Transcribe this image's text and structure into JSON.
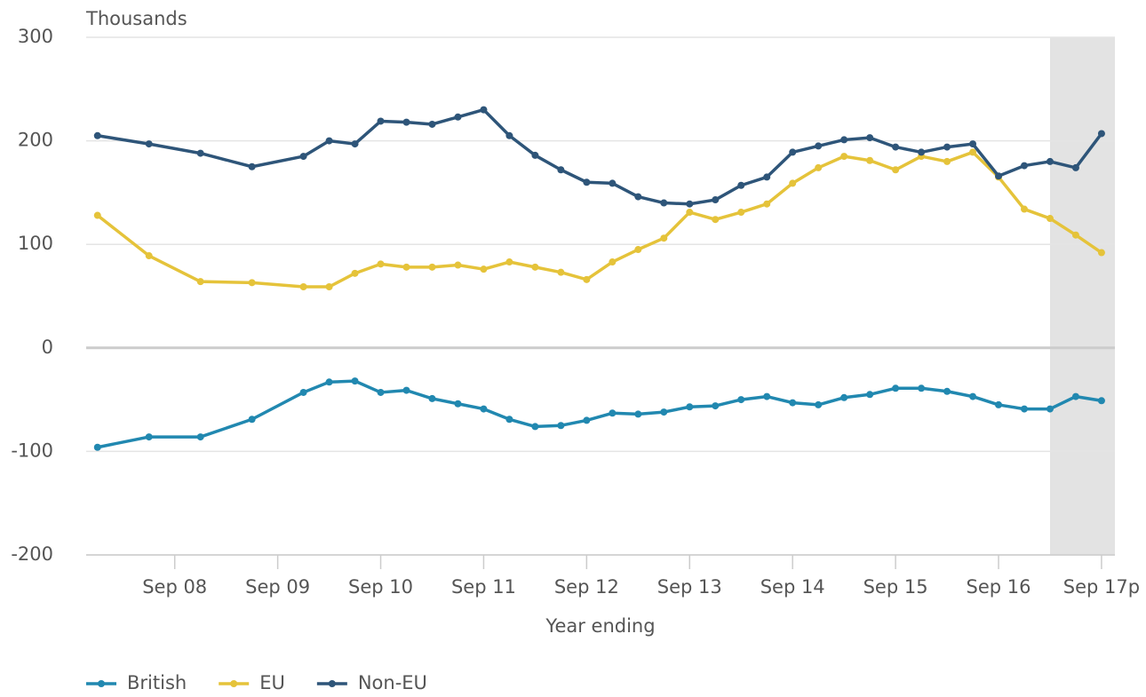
{
  "chart_data": {
    "type": "line",
    "y_axis_label": "Thousands",
    "x_axis_label": "Year ending",
    "x": [
      7.25,
      7.75,
      8.25,
      8.75,
      9.25,
      9.5,
      9.75,
      10,
      10.25,
      10.5,
      10.75,
      11,
      11.25,
      11.5,
      11.75,
      12,
      12.25,
      12.5,
      12.75,
      13,
      13.25,
      13.5,
      13.75,
      14,
      14.25,
      14.5,
      14.75,
      15,
      15.25,
      15.5,
      15.75,
      16,
      16.25,
      16.5,
      16.75,
      17
    ],
    "series": [
      {
        "name": "British",
        "color": "#2188b0",
        "values": [
          -96,
          -86,
          -86,
          -69,
          -43,
          -33,
          -32,
          -43,
          -41,
          -49,
          -54,
          -59,
          -69,
          -76,
          -75,
          -70,
          -63,
          -64,
          -62,
          -57,
          -56,
          -50,
          -47,
          -53,
          -55,
          -48,
          -45,
          -39,
          -39,
          -42,
          -47,
          -55,
          -59,
          -59,
          -47,
          -51
        ]
      },
      {
        "name": "EU",
        "color": "#e5c33a",
        "values": [
          128,
          89,
          64,
          63,
          59,
          59,
          72,
          81,
          78,
          78,
          80,
          76,
          83,
          78,
          73,
          66,
          83,
          95,
          106,
          131,
          124,
          131,
          139,
          159,
          174,
          185,
          181,
          172,
          185,
          180,
          189,
          165,
          134,
          125,
          109,
          92
        ]
      },
      {
        "name": "Non-EU",
        "color": "#2e5579",
        "values": [
          205,
          197,
          188,
          175,
          185,
          200,
          197,
          219,
          218,
          216,
          223,
          230,
          205,
          186,
          172,
          160,
          159,
          146,
          140,
          139,
          143,
          157,
          165,
          189,
          195,
          201,
          203,
          194,
          189,
          194,
          197,
          166,
          176,
          180,
          174,
          207
        ]
      }
    ],
    "xlim": [
      7.14,
      17.13
    ],
    "xticks": [
      {
        "value": 8,
        "label": "Sep 08"
      },
      {
        "value": 9,
        "label": "Sep 09"
      },
      {
        "value": 10,
        "label": "Sep 10"
      },
      {
        "value": 11,
        "label": "Sep 11"
      },
      {
        "value": 12,
        "label": "Sep 12"
      },
      {
        "value": 13,
        "label": "Sep 13"
      },
      {
        "value": 14,
        "label": "Sep 14"
      },
      {
        "value": 15,
        "label": "Sep 15"
      },
      {
        "value": 16,
        "label": "Sep 16"
      },
      {
        "value": 17,
        "label": "Sep 17p"
      }
    ],
    "ylim": [
      -200,
      300
    ],
    "yticks": [
      -200,
      -100,
      0,
      100,
      200,
      300
    ],
    "shaded_x_range": [
      16.5,
      17.13
    ],
    "grid": true,
    "legend": "bottom-left"
  }
}
